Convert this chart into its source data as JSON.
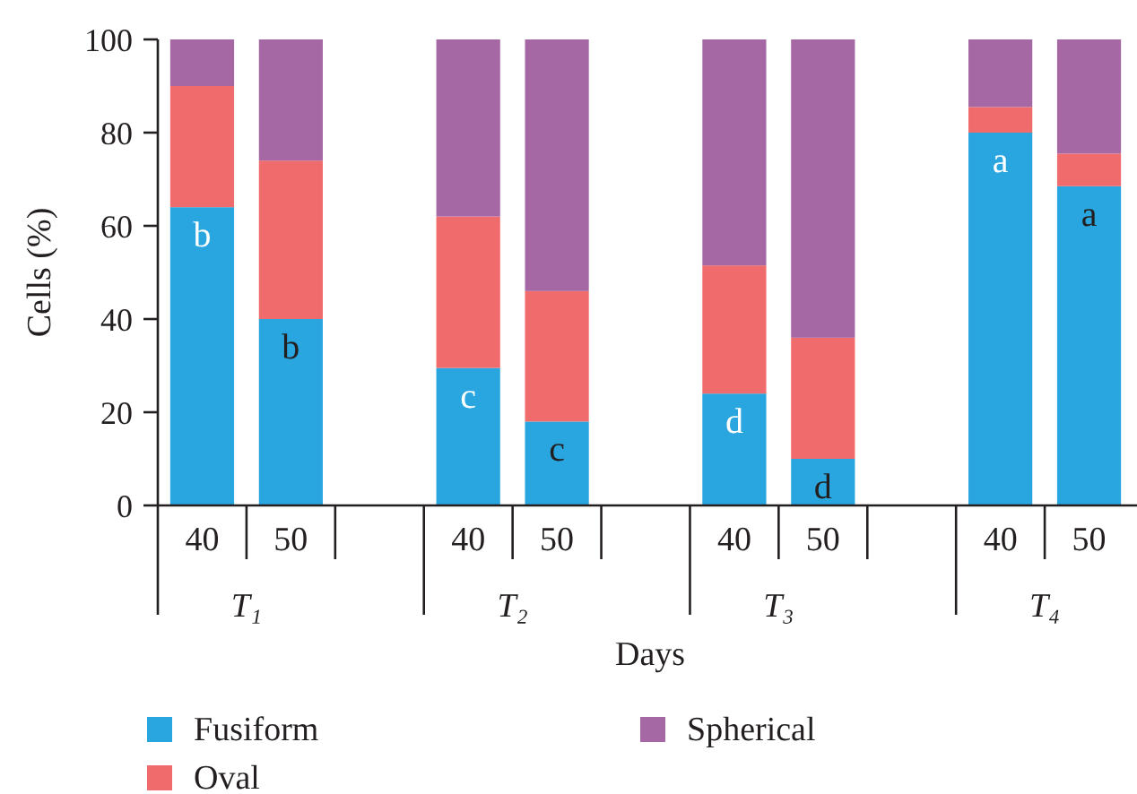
{
  "chart_data": {
    "type": "bar",
    "stacked": true,
    "ylabel": "Cells (%)",
    "xlabel": "Days",
    "categories": [
      "40",
      "50",
      null,
      "40",
      "50",
      null,
      "40",
      "50",
      null,
      "40",
      "50"
    ],
    "series": [
      {
        "name": "Fusiform",
        "color": "#29a6df",
        "values": [
          64,
          40,
          null,
          29.5,
          18,
          null,
          24,
          10,
          null,
          80,
          68.5
        ],
        "value_labels": [
          "b",
          "b",
          null,
          "c",
          "c",
          null,
          "d",
          "d",
          null,
          "a",
          "a"
        ]
      },
      {
        "name": "Oval",
        "color": "#f06b6b",
        "values": [
          26,
          34,
          null,
          32.5,
          28,
          null,
          27.5,
          26,
          null,
          5.5,
          7
        ]
      },
      {
        "name": "Spherical",
        "color": "#a668a4",
        "values": [
          10,
          26,
          null,
          38,
          54,
          null,
          48.5,
          64,
          null,
          14.5,
          24.5
        ]
      }
    ],
    "ylim": [
      0,
      100
    ],
    "yticks": [
      0,
      20,
      40,
      60,
      80,
      100
    ],
    "legend": "bottom",
    "annotations": [
      "T₁",
      "T₂",
      "T₃",
      "T₄"
    ]
  }
}
